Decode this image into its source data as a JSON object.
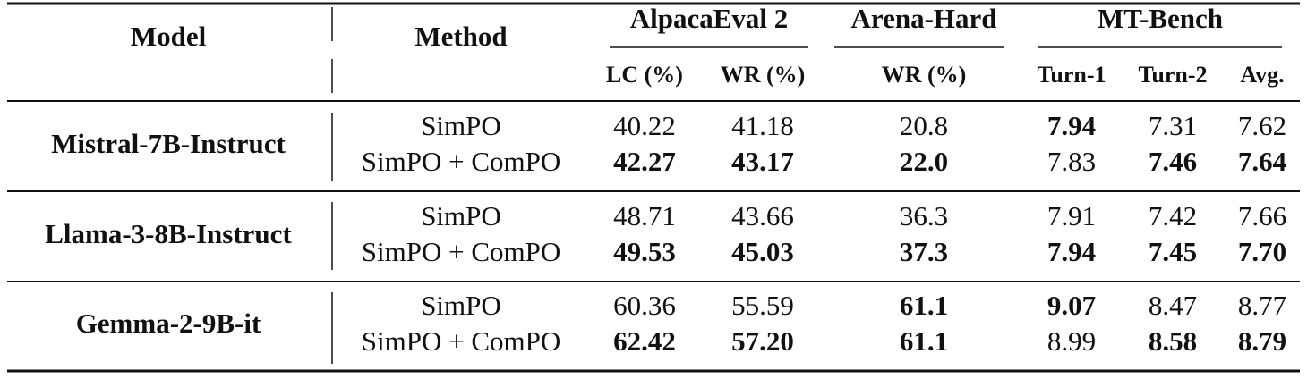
{
  "header": {
    "model": "Model",
    "method": "Method",
    "groups": [
      {
        "name": "AlpacaEval 2",
        "columns": [
          "LC (%)",
          "WR (%)"
        ]
      },
      {
        "name": "Arena-Hard",
        "columns": [
          "WR (%)"
        ]
      },
      {
        "name": "MT-Bench",
        "columns": [
          "Turn-1",
          "Turn-2",
          "Avg."
        ]
      }
    ]
  },
  "blocks": [
    {
      "model": "Mistral-7B-Instruct",
      "rows": [
        {
          "method": "SimPO",
          "values": [
            "40.22",
            "41.18",
            "20.8",
            "7.94",
            "7.31",
            "7.62"
          ],
          "bold": [
            false,
            false,
            false,
            true,
            false,
            false
          ]
        },
        {
          "method": "SimPO + ComPO",
          "values": [
            "42.27",
            "43.17",
            "22.0",
            "7.83",
            "7.46",
            "7.64"
          ],
          "bold": [
            true,
            true,
            true,
            false,
            true,
            true
          ]
        }
      ]
    },
    {
      "model": "Llama-3-8B-Instruct",
      "rows": [
        {
          "method": "SimPO",
          "values": [
            "48.71",
            "43.66",
            "36.3",
            "7.91",
            "7.42",
            "7.66"
          ],
          "bold": [
            false,
            false,
            false,
            false,
            false,
            false
          ]
        },
        {
          "method": "SimPO + ComPO",
          "values": [
            "49.53",
            "45.03",
            "37.3",
            "7.94",
            "7.45",
            "7.70"
          ],
          "bold": [
            true,
            true,
            true,
            true,
            true,
            true
          ]
        }
      ]
    },
    {
      "model": "Gemma-2-9B-it",
      "rows": [
        {
          "method": "SimPO",
          "values": [
            "60.36",
            "55.59",
            "61.1",
            "9.07",
            "8.47",
            "8.77"
          ],
          "bold": [
            false,
            false,
            true,
            true,
            false,
            false
          ]
        },
        {
          "method": "SimPO + ComPO",
          "values": [
            "62.42",
            "57.20",
            "61.1",
            "8.99",
            "8.58",
            "8.79"
          ],
          "bold": [
            true,
            true,
            true,
            false,
            true,
            true
          ]
        }
      ]
    }
  ]
}
